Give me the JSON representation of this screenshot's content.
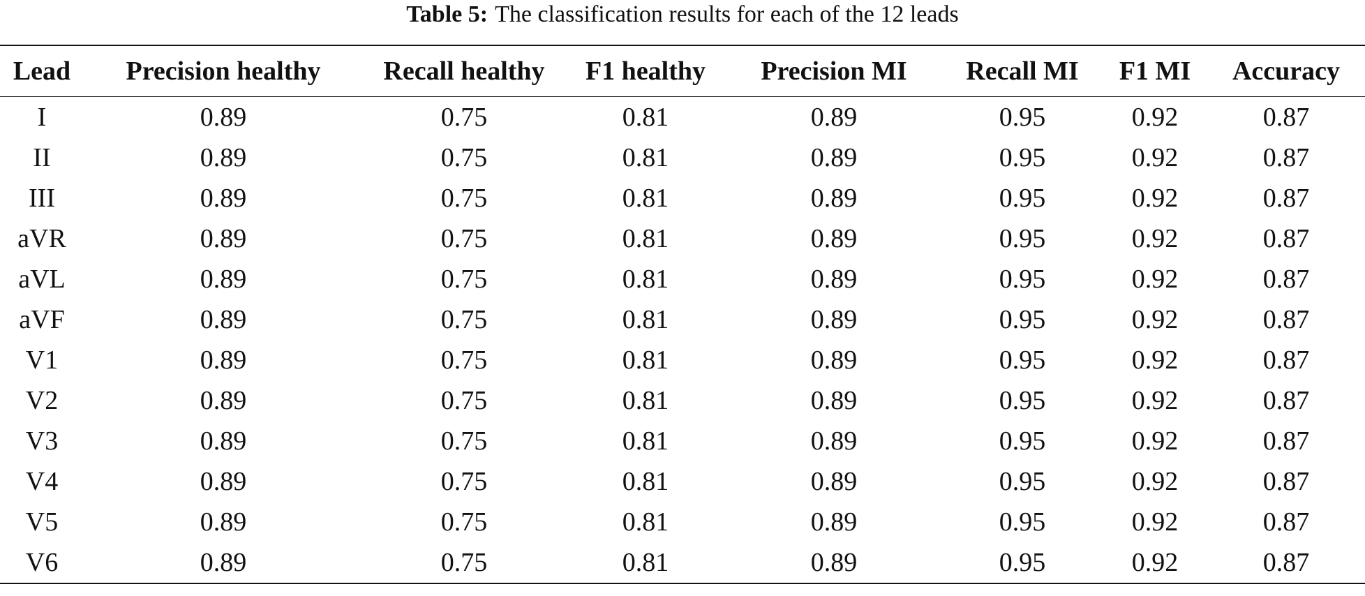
{
  "caption": {
    "label": "Table 5:",
    "text": "The classification results for each of the 12 leads"
  },
  "table": {
    "headers": [
      "Lead",
      "Precision healthy",
      "Recall healthy",
      "F1 healthy",
      "Precision MI",
      "Recall MI",
      "F1 MI",
      "Accuracy"
    ],
    "rows": [
      [
        "I",
        "0.89",
        "0.75",
        "0.81",
        "0.89",
        "0.95",
        "0.92",
        "0.87"
      ],
      [
        "II",
        "0.89",
        "0.75",
        "0.81",
        "0.89",
        "0.95",
        "0.92",
        "0.87"
      ],
      [
        "III",
        "0.89",
        "0.75",
        "0.81",
        "0.89",
        "0.95",
        "0.92",
        "0.87"
      ],
      [
        "aVR",
        "0.89",
        "0.75",
        "0.81",
        "0.89",
        "0.95",
        "0.92",
        "0.87"
      ],
      [
        "aVL",
        "0.89",
        "0.75",
        "0.81",
        "0.89",
        "0.95",
        "0.92",
        "0.87"
      ],
      [
        "aVF",
        "0.89",
        "0.75",
        "0.81",
        "0.89",
        "0.95",
        "0.92",
        "0.87"
      ],
      [
        "V1",
        "0.89",
        "0.75",
        "0.81",
        "0.89",
        "0.95",
        "0.92",
        "0.87"
      ],
      [
        "V2",
        "0.89",
        "0.75",
        "0.81",
        "0.89",
        "0.95",
        "0.92",
        "0.87"
      ],
      [
        "V3",
        "0.89",
        "0.75",
        "0.81",
        "0.89",
        "0.95",
        "0.92",
        "0.87"
      ],
      [
        "V4",
        "0.89",
        "0.75",
        "0.81",
        "0.89",
        "0.95",
        "0.92",
        "0.87"
      ],
      [
        "V5",
        "0.89",
        "0.75",
        "0.81",
        "0.89",
        "0.95",
        "0.92",
        "0.87"
      ],
      [
        "V6",
        "0.89",
        "0.75",
        "0.81",
        "0.89",
        "0.95",
        "0.92",
        "0.87"
      ]
    ]
  }
}
